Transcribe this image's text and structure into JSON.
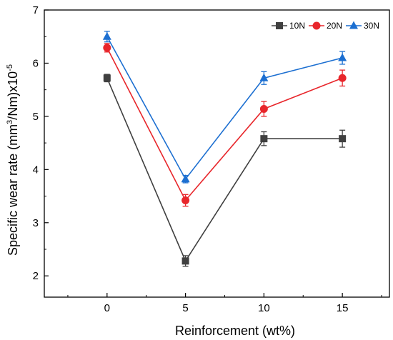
{
  "chart_data": {
    "type": "line",
    "xlabel": "Reinforcement (wt%)",
    "ylabel_main": "Specific wear rate (mm",
    "ylabel_sup1": "3",
    "ylabel_mid": "/Nm)x10",
    "ylabel_sup2": "-5",
    "x": [
      0,
      5,
      10,
      15
    ],
    "xlim": [
      -4,
      18
    ],
    "ylim": [
      1.6,
      7
    ],
    "xticks": [
      0,
      5,
      10,
      15
    ],
    "yticks": [
      2,
      3,
      4,
      5,
      6,
      7
    ],
    "grid": false,
    "legend_position": "top-right",
    "series": [
      {
        "name": "10N",
        "color": "#404040",
        "marker": "square",
        "values": [
          5.72,
          2.28,
          4.58,
          4.58
        ],
        "errors": [
          0.07,
          0.1,
          0.13,
          0.16
        ]
      },
      {
        "name": "20N",
        "color": "#e8262b",
        "marker": "circle",
        "values": [
          6.29,
          3.42,
          5.14,
          5.72
        ],
        "errors": [
          0.08,
          0.11,
          0.14,
          0.15
        ]
      },
      {
        "name": "30N",
        "color": "#1c6fd1",
        "marker": "triangle",
        "values": [
          6.5,
          3.82,
          5.72,
          6.1
        ],
        "errors": [
          0.1,
          0.07,
          0.12,
          0.12
        ]
      }
    ]
  }
}
